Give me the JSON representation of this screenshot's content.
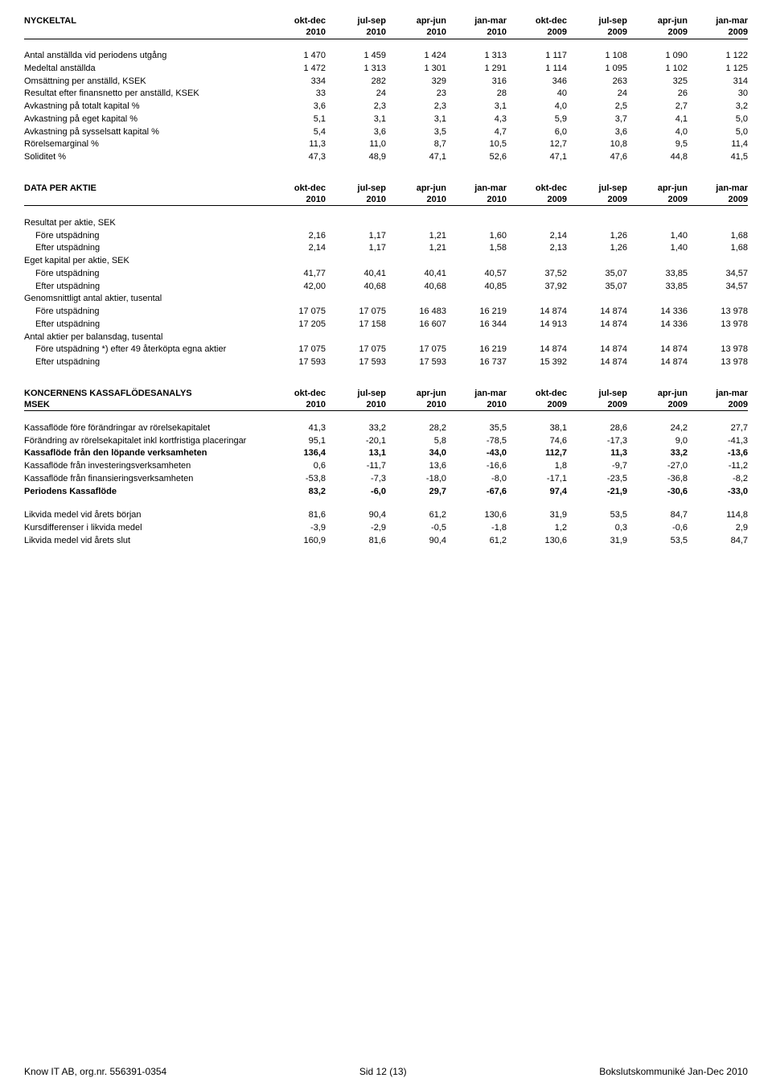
{
  "periods": {
    "cols": [
      {
        "top": "okt-dec",
        "bot": "2010"
      },
      {
        "top": "jul-sep",
        "bot": "2010"
      },
      {
        "top": "apr-jun",
        "bot": "2010"
      },
      {
        "top": "jan-mar",
        "bot": "2010"
      },
      {
        "top": "okt-dec",
        "bot": "2009"
      },
      {
        "top": "jul-sep",
        "bot": "2009"
      },
      {
        "top": "apr-jun",
        "bot": "2009"
      },
      {
        "top": "jan-mar",
        "bot": "2009"
      }
    ]
  },
  "nyckeltal": {
    "title": "NYCKELTAL",
    "rows": [
      {
        "label": "Antal anställda vid periodens utgång",
        "v": [
          "1 470",
          "1 459",
          "1 424",
          "1 313",
          "1 117",
          "1 108",
          "1 090",
          "1 122"
        ]
      },
      {
        "label": "Medeltal anställda",
        "v": [
          "1 472",
          "1 313",
          "1 301",
          "1 291",
          "1 114",
          "1 095",
          "1 102",
          "1 125"
        ]
      },
      {
        "label": "Omsättning per anställd, KSEK",
        "v": [
          "334",
          "282",
          "329",
          "316",
          "346",
          "263",
          "325",
          "314"
        ]
      },
      {
        "label": "Resultat efter finansnetto per anställd, KSEK",
        "v": [
          "33",
          "24",
          "23",
          "28",
          "40",
          "24",
          "26",
          "30"
        ]
      },
      {
        "label": "Avkastning på totalt kapital %",
        "v": [
          "3,6",
          "2,3",
          "2,3",
          "3,1",
          "4,0",
          "2,5",
          "2,7",
          "3,2"
        ]
      },
      {
        "label": "Avkastning på eget kapital %",
        "v": [
          "5,1",
          "3,1",
          "3,1",
          "4,3",
          "5,9",
          "3,7",
          "4,1",
          "5,0"
        ]
      },
      {
        "label": "Avkastning på sysselsatt kapital %",
        "v": [
          "5,4",
          "3,6",
          "3,5",
          "4,7",
          "6,0",
          "3,6",
          "4,0",
          "5,0"
        ]
      },
      {
        "label": "Rörelsemarginal %",
        "v": [
          "11,3",
          "11,0",
          "8,7",
          "10,5",
          "12,7",
          "10,8",
          "9,5",
          "11,4"
        ]
      },
      {
        "label": "Soliditet %",
        "v": [
          "47,3",
          "48,9",
          "47,1",
          "52,6",
          "47,1",
          "47,6",
          "44,8",
          "41,5"
        ]
      }
    ]
  },
  "dataPerAktie": {
    "title": "DATA PER AKTIE",
    "groups": [
      {
        "label": "Resultat per aktie, SEK",
        "rows": [
          {
            "label": "Före utspädning",
            "v": [
              "2,16",
              "1,17",
              "1,21",
              "1,60",
              "2,14",
              "1,26",
              "1,40",
              "1,68"
            ]
          },
          {
            "label": "Efter utspädning",
            "v": [
              "2,14",
              "1,17",
              "1,21",
              "1,58",
              "2,13",
              "1,26",
              "1,40",
              "1,68"
            ]
          }
        ]
      },
      {
        "label": "Eget kapital per aktie, SEK",
        "rows": [
          {
            "label": "Före utspädning",
            "v": [
              "41,77",
              "40,41",
              "40,41",
              "40,57",
              "37,52",
              "35,07",
              "33,85",
              "34,57"
            ]
          },
          {
            "label": "Efter utspädning",
            "v": [
              "42,00",
              "40,68",
              "40,68",
              "40,85",
              "37,92",
              "35,07",
              "33,85",
              "34,57"
            ]
          }
        ]
      },
      {
        "label": "Genomsnittligt antal aktier, tusental",
        "rows": [
          {
            "label": "Före utspädning",
            "v": [
              "17 075",
              "17 075",
              "16 483",
              "16 219",
              "14 874",
              "14 874",
              "14 336",
              "13 978"
            ]
          },
          {
            "label": "Efter utspädning",
            "v": [
              "17 205",
              "17 158",
              "16 607",
              "16 344",
              "14 913",
              "14 874",
              "14 336",
              "13 978"
            ]
          }
        ]
      },
      {
        "label": "Antal aktier per balansdag, tusental",
        "rows": [
          {
            "label": "Före utspädning  *) efter 49 återköpta egna aktier",
            "v": [
              "17 075",
              "17 075",
              "17 075",
              "16 219",
              "14 874",
              "14 874",
              "14 874",
              "13 978"
            ]
          },
          {
            "label": "Efter utspädning",
            "v": [
              "17 593",
              "17 593",
              "17 593",
              "16 737",
              "15 392",
              "14 874",
              "14 874",
              "13 978"
            ]
          }
        ]
      }
    ]
  },
  "kassaflode": {
    "title1": "KONCERNENS KASSAFLÖDESANALYS",
    "title2": "MSEK",
    "rows1": [
      {
        "label": "Kassaflöde före förändringar av rörelsekapitalet",
        "v": [
          "41,3",
          "33,2",
          "28,2",
          "35,5",
          "38,1",
          "28,6",
          "24,2",
          "27,7"
        ],
        "bold": false
      },
      {
        "label": "Förändring av rörelsekapitalet inkl kortfristiga placeringar",
        "v": [
          "95,1",
          "-20,1",
          "5,8",
          "-78,5",
          "74,6",
          "-17,3",
          "9,0",
          "-41,3"
        ],
        "bold": false
      },
      {
        "label": "Kassaflöde från den löpande verksamheten",
        "v": [
          "136,4",
          "13,1",
          "34,0",
          "-43,0",
          "112,7",
          "11,3",
          "33,2",
          "-13,6"
        ],
        "bold": true
      },
      {
        "label": "Kassaflöde från investeringsverksamheten",
        "v": [
          "0,6",
          "-11,7",
          "13,6",
          "-16,6",
          "1,8",
          "-9,7",
          "-27,0",
          "-11,2"
        ],
        "bold": false
      },
      {
        "label": "Kassaflöde från finansieringsverksamheten",
        "v": [
          "-53,8",
          "-7,3",
          "-18,0",
          "-8,0",
          "-17,1",
          "-23,5",
          "-36,8",
          "-8,2"
        ],
        "bold": false
      },
      {
        "label": "Periodens Kassaflöde",
        "v": [
          "83,2",
          "-6,0",
          "29,7",
          "-67,6",
          "97,4",
          "-21,9",
          "-30,6",
          "-33,0"
        ],
        "bold": true
      }
    ],
    "rows2": [
      {
        "label": "Likvida medel vid årets början",
        "v": [
          "81,6",
          "90,4",
          "61,2",
          "130,6",
          "31,9",
          "53,5",
          "84,7",
          "114,8"
        ]
      },
      {
        "label": "Kursdifferenser i likvida medel",
        "v": [
          "-3,9",
          "-2,9",
          "-0,5",
          "-1,8",
          "1,2",
          "0,3",
          "-0,6",
          "2,9"
        ]
      },
      {
        "label": "Likvida medel vid årets slut",
        "v": [
          "160,9",
          "81,6",
          "90,4",
          "61,2",
          "130,6",
          "31,9",
          "53,5",
          "84,7"
        ]
      }
    ]
  },
  "footer": {
    "left": "Know IT AB, org.nr. 556391-0354",
    "mid": "Sid 12 (13)",
    "right": "Bokslutskommuniké Jan-Dec 2010"
  },
  "style": {
    "pageWidth": 960,
    "pageHeight": 1345,
    "background": "#ffffff",
    "text": "#000000",
    "fontFamily": "Arial",
    "fontSizeBody": 11,
    "fontSizeFooter": 12,
    "border": "#000000"
  }
}
